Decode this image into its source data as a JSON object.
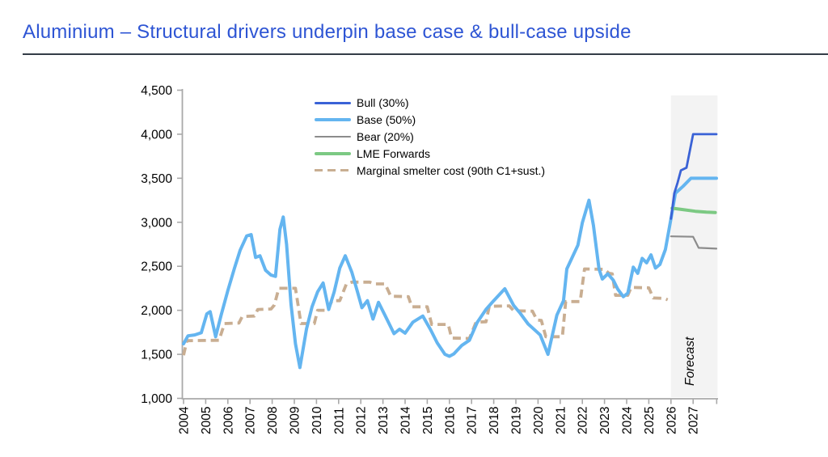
{
  "header": {
    "title": "Aluminium – Structural drivers underpin base case & bull-case upside"
  },
  "chart_data": {
    "type": "line",
    "title": "",
    "xlabel": "",
    "ylabel": "",
    "ylim": [
      1000,
      4500
    ],
    "yticks": [
      1000,
      1500,
      2000,
      2500,
      3000,
      3500,
      4000,
      4500
    ],
    "x_years": [
      2004,
      2005,
      2006,
      2007,
      2008,
      2009,
      2010,
      2011,
      2012,
      2013,
      2014,
      2015,
      2016,
      2017,
      2018,
      2019,
      2020,
      2021,
      2022,
      2023,
      2024,
      2025,
      2026,
      2027
    ],
    "x_end": 2028.1,
    "grid": false,
    "legend_position": "upper-middle-left",
    "forecast": {
      "label": "Forecast",
      "start_year": 2026,
      "end_year": 2028.1,
      "band_color": "#F3F3F3"
    },
    "axis_color": "#A9A9A9",
    "series": [
      {
        "name": "Bull (30%)",
        "color": "#3A62D6",
        "width": 2.8,
        "dashed": false,
        "points": [
          [
            2026.0,
            3040
          ],
          [
            2026.15,
            3330
          ],
          [
            2026.3,
            3450
          ],
          [
            2026.45,
            3590
          ],
          [
            2026.7,
            3620
          ],
          [
            2027.0,
            4000
          ],
          [
            2028.05,
            4000
          ]
        ]
      },
      {
        "name": "Base (50%)",
        "color": "#64B5F0",
        "width": 4,
        "dashed": false,
        "points": [
          [
            2004.0,
            1620
          ],
          [
            2004.2,
            1710
          ],
          [
            2004.5,
            1720
          ],
          [
            2004.8,
            1745
          ],
          [
            2005.05,
            1960
          ],
          [
            2005.2,
            1985
          ],
          [
            2005.45,
            1700
          ],
          [
            2005.7,
            1950
          ],
          [
            2006.0,
            2225
          ],
          [
            2006.3,
            2480
          ],
          [
            2006.55,
            2680
          ],
          [
            2006.85,
            2845
          ],
          [
            2007.05,
            2860
          ],
          [
            2007.25,
            2600
          ],
          [
            2007.45,
            2620
          ],
          [
            2007.7,
            2455
          ],
          [
            2007.95,
            2400
          ],
          [
            2008.15,
            2385
          ],
          [
            2008.35,
            2920
          ],
          [
            2008.5,
            3060
          ],
          [
            2008.65,
            2750
          ],
          [
            2008.85,
            2070
          ],
          [
            2009.05,
            1620
          ],
          [
            2009.25,
            1350
          ],
          [
            2009.55,
            1790
          ],
          [
            2009.8,
            2040
          ],
          [
            2010.05,
            2210
          ],
          [
            2010.3,
            2310
          ],
          [
            2010.55,
            2010
          ],
          [
            2010.8,
            2210
          ],
          [
            2011.05,
            2480
          ],
          [
            2011.3,
            2620
          ],
          [
            2011.6,
            2430
          ],
          [
            2011.85,
            2210
          ],
          [
            2012.05,
            2030
          ],
          [
            2012.3,
            2110
          ],
          [
            2012.55,
            1900
          ],
          [
            2012.8,
            2090
          ],
          [
            2013.1,
            1940
          ],
          [
            2013.5,
            1735
          ],
          [
            2013.75,
            1785
          ],
          [
            2014.0,
            1740
          ],
          [
            2014.35,
            1865
          ],
          [
            2014.8,
            1935
          ],
          [
            2015.15,
            1780
          ],
          [
            2015.45,
            1630
          ],
          [
            2015.8,
            1500
          ],
          [
            2016.0,
            1478
          ],
          [
            2016.2,
            1505
          ],
          [
            2016.55,
            1600
          ],
          [
            2016.9,
            1660
          ],
          [
            2017.25,
            1860
          ],
          [
            2017.65,
            2010
          ],
          [
            2018.0,
            2110
          ],
          [
            2018.5,
            2245
          ],
          [
            2018.9,
            2055
          ],
          [
            2019.2,
            1965
          ],
          [
            2019.55,
            1845
          ],
          [
            2019.9,
            1765
          ],
          [
            2020.1,
            1720
          ],
          [
            2020.45,
            1500
          ],
          [
            2020.85,
            1945
          ],
          [
            2021.15,
            2110
          ],
          [
            2021.3,
            2470
          ],
          [
            2021.8,
            2740
          ],
          [
            2022.0,
            2995
          ],
          [
            2022.3,
            3250
          ],
          [
            2022.5,
            2965
          ],
          [
            2022.75,
            2470
          ],
          [
            2022.9,
            2355
          ],
          [
            2023.15,
            2415
          ],
          [
            2023.4,
            2340
          ],
          [
            2023.6,
            2240
          ],
          [
            2023.85,
            2155
          ],
          [
            2024.05,
            2195
          ],
          [
            2024.3,
            2490
          ],
          [
            2024.5,
            2420
          ],
          [
            2024.7,
            2590
          ],
          [
            2024.9,
            2540
          ],
          [
            2025.1,
            2630
          ],
          [
            2025.3,
            2480
          ],
          [
            2025.5,
            2520
          ],
          [
            2025.75,
            2690
          ],
          [
            2026.0,
            3040
          ],
          [
            2026.2,
            3330
          ],
          [
            2026.55,
            3410
          ],
          [
            2026.9,
            3500
          ],
          [
            2028.05,
            3500
          ]
        ]
      },
      {
        "name": "Bear (20%)",
        "color": "#8C8C8C",
        "width": 2.2,
        "dashed": false,
        "points": [
          [
            2026.0,
            2840
          ],
          [
            2027.0,
            2835
          ],
          [
            2027.25,
            2710
          ],
          [
            2028.05,
            2700
          ]
        ]
      },
      {
        "name": "LME Forwards",
        "color": "#7CC983",
        "width": 4,
        "dashed": false,
        "points": [
          [
            2026.05,
            3160
          ],
          [
            2026.5,
            3145
          ],
          [
            2027.1,
            3125
          ],
          [
            2027.6,
            3115
          ],
          [
            2028.0,
            3110
          ]
        ]
      },
      {
        "name": "Marginal smelter cost (90th C1+sust.)",
        "color": "#C9AE92",
        "width": 3.8,
        "dashed": true,
        "points": [
          [
            2004.0,
            1490
          ],
          [
            2004.15,
            1655
          ],
          [
            2005.6,
            1660
          ],
          [
            2005.85,
            1850
          ],
          [
            2006.5,
            1855
          ],
          [
            2006.65,
            1930
          ],
          [
            2007.2,
            1935
          ],
          [
            2007.35,
            2010
          ],
          [
            2007.95,
            2015
          ],
          [
            2008.1,
            2060
          ],
          [
            2008.3,
            2250
          ],
          [
            2009.05,
            2250
          ],
          [
            2009.3,
            1850
          ],
          [
            2009.9,
            1850
          ],
          [
            2010.05,
            2000
          ],
          [
            2010.5,
            2000
          ],
          [
            2010.7,
            2110
          ],
          [
            2011.05,
            2110
          ],
          [
            2011.35,
            2300
          ],
          [
            2011.6,
            2320
          ],
          [
            2012.4,
            2320
          ],
          [
            2012.6,
            2300
          ],
          [
            2013.1,
            2300
          ],
          [
            2013.35,
            2160
          ],
          [
            2014.15,
            2155
          ],
          [
            2014.3,
            2040
          ],
          [
            2015.0,
            2040
          ],
          [
            2015.2,
            1840
          ],
          [
            2015.95,
            1840
          ],
          [
            2016.1,
            1685
          ],
          [
            2016.9,
            1680
          ],
          [
            2017.2,
            1865
          ],
          [
            2017.65,
            1870
          ],
          [
            2017.8,
            2045
          ],
          [
            2018.7,
            2050
          ],
          [
            2018.9,
            1995
          ],
          [
            2019.75,
            1990
          ],
          [
            2019.95,
            1890
          ],
          [
            2020.15,
            1885
          ],
          [
            2020.35,
            1700
          ],
          [
            2021.1,
            1700
          ],
          [
            2021.25,
            2100
          ],
          [
            2021.9,
            2100
          ],
          [
            2022.1,
            2470
          ],
          [
            2023.0,
            2465
          ],
          [
            2023.2,
            2420
          ],
          [
            2023.35,
            2415
          ],
          [
            2023.5,
            2170
          ],
          [
            2024.05,
            2170
          ],
          [
            2024.2,
            2260
          ],
          [
            2025.0,
            2255
          ],
          [
            2025.2,
            2140
          ],
          [
            2025.7,
            2135
          ],
          [
            2025.85,
            2120
          ]
        ]
      }
    ]
  }
}
